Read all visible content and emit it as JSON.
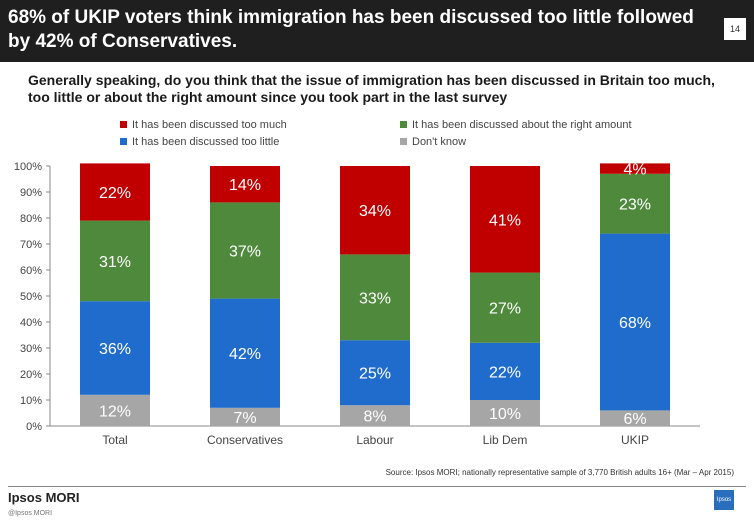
{
  "header": {
    "title": "68% of UKIP voters think immigration has been discussed too little followed by 42% of Conservatives.",
    "slide_number": "14"
  },
  "question": "Generally speaking, do you think that the issue of immigration has been discussed in Britain too much, too little or about the right amount since you took part in the last survey",
  "source": "Source: Ipsos MORI;  nationally representative sample of  3,770 British adults 16+ (Mar – Apr 2015)",
  "footer": {
    "logo": "Ipsos MORI",
    "copyright": "@Ipsos MORI",
    "brand_mark": "Ipsos"
  },
  "chart_data": {
    "type": "bar",
    "stacked": true,
    "categories": [
      "Total",
      "Conservatives",
      "Labour",
      "Lib Dem",
      "UKIP"
    ],
    "series": [
      {
        "name": "Don't know",
        "color": "#a6a6a6",
        "values": [
          12,
          7,
          8,
          10,
          6
        ]
      },
      {
        "name": "It has been discussed too little",
        "color": "#1f6ccd",
        "values": [
          36,
          42,
          25,
          22,
          68
        ]
      },
      {
        "name": "It has been discussed about the right amount",
        "color": "#4f8a3c",
        "values": [
          31,
          37,
          33,
          27,
          23
        ]
      },
      {
        "name": "It has been discussed too much",
        "color": "#c00000",
        "values": [
          22,
          14,
          34,
          41,
          4
        ]
      }
    ],
    "legend_order": [
      "It has been discussed too much",
      "It has been discussed about the right amount",
      "It has been discussed too little",
      "Don't know"
    ],
    "ylim": [
      0,
      100
    ],
    "yticks": [
      "0%",
      "10%",
      "20%",
      "30%",
      "40%",
      "50%",
      "60%",
      "70%",
      "80%",
      "90%",
      "100%"
    ],
    "legend_position": "top",
    "grid": false
  }
}
